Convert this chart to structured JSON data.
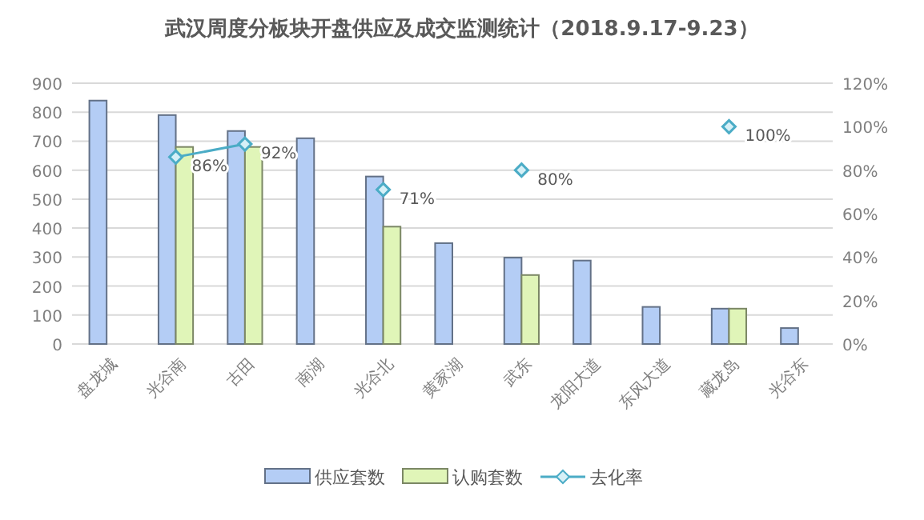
{
  "chart_data": {
    "type": "bar",
    "title": "武汉周度分板块开盘供应及成交监测统计（2018.9.17-9.23）",
    "categories": [
      "盘龙城",
      "光谷南",
      "古田",
      "南湖",
      "光谷北",
      "黄家湖",
      "武东",
      "龙阳大道",
      "东风大道",
      "藏龙岛",
      "光谷东"
    ],
    "series": [
      {
        "name": "供应套数",
        "color": "#b4cdf5",
        "values": [
          840,
          790,
          735,
          710,
          578,
          348,
          298,
          288,
          128,
          122,
          55
        ]
      },
      {
        "name": "认购套数",
        "color": "#e0f5b8",
        "values": [
          null,
          680,
          680,
          null,
          405,
          null,
          238,
          null,
          null,
          122,
          null
        ]
      },
      {
        "name": "去化率",
        "type": "line",
        "axis": "y2",
        "color": "#4bacc6",
        "marker": "diamond",
        "values": [
          null,
          86,
          92,
          null,
          71,
          null,
          80,
          null,
          null,
          100,
          null
        ],
        "value_labels": [
          null,
          "86%",
          "92%",
          null,
          "71%",
          null,
          "80%",
          null,
          null,
          "100%",
          null
        ]
      }
    ],
    "ylim": [
      0,
      900
    ],
    "yticks": [
      0,
      100,
      200,
      300,
      400,
      500,
      600,
      700,
      800,
      900
    ],
    "y2lim": [
      0,
      120
    ],
    "y2ticks": [
      {
        "value": 0,
        "label": "0%"
      },
      {
        "value": 20,
        "label": "20%"
      },
      {
        "value": 40,
        "label": "40%"
      },
      {
        "value": 60,
        "label": "60%"
      },
      {
        "value": 80,
        "label": "80%"
      },
      {
        "value": 100,
        "label": "100%"
      },
      {
        "value": 120,
        "label": "120%"
      }
    ],
    "grid": "y",
    "legend": "bottom"
  }
}
